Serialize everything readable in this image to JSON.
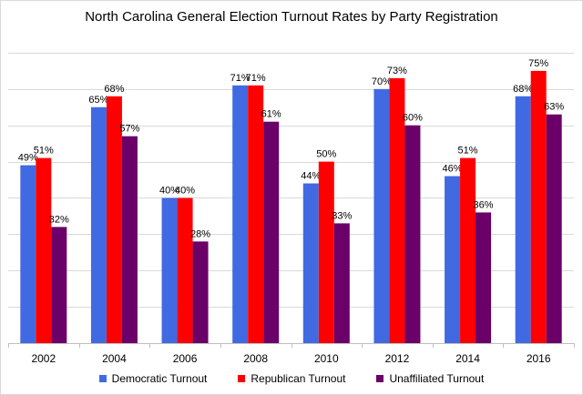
{
  "chart_data": {
    "type": "bar",
    "title": "North Carolina General Election Turnout Rates by Party Registration",
    "xlabel": "",
    "ylabel": "",
    "ylim": [
      0,
      0.85
    ],
    "grid": true,
    "legend_position": "bottom",
    "categories": [
      "2002",
      "2004",
      "2006",
      "2008",
      "2010",
      "2012",
      "2014",
      "2016"
    ],
    "series": [
      {
        "name": "Democratic Turnout",
        "color": "#4169e1",
        "values": [
          0.49,
          0.65,
          0.4,
          0.71,
          0.44,
          0.7,
          0.46,
          0.68
        ],
        "labels": [
          "49%",
          "65%",
          "40%",
          "71%",
          "44%",
          "70%",
          "46%",
          "68%"
        ]
      },
      {
        "name": "Republican Turnout",
        "color": "#ff0000",
        "values": [
          0.51,
          0.68,
          0.4,
          0.71,
          0.5,
          0.73,
          0.51,
          0.75
        ],
        "labels": [
          "51%",
          "68%",
          "40%",
          "71%",
          "50%",
          "73%",
          "51%",
          "75%"
        ]
      },
      {
        "name": "Unaffiliated Turnout",
        "color": "#6a0068",
        "values": [
          0.32,
          0.57,
          0.28,
          0.61,
          0.33,
          0.6,
          0.36,
          0.63
        ],
        "labels": [
          "32%",
          "57%",
          "28%",
          "61%",
          "33%",
          "60%",
          "36%",
          "63%"
        ]
      }
    ]
  }
}
